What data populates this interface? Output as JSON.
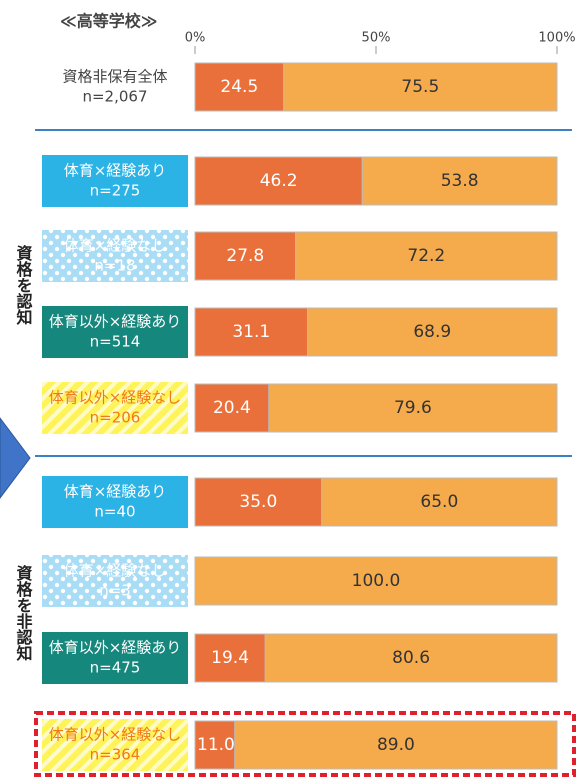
{
  "chart_data": {
    "type": "stacked-bar-horizontal",
    "title": "≪高等学校≫",
    "categories": [
      "資格非保有全体",
      "体育×経験あり",
      "体育×経験なし",
      "体育以外×経験あり",
      "体育以外×経験なし",
      "体育×経験あり",
      "体育×経験なし",
      "体育以外×経験あり",
      "体育以外×経験なし"
    ],
    "sample_sizes": [
      "n=2,067",
      "n=275",
      "n=18",
      "n=514",
      "n=206",
      "n=40",
      "n=3",
      "n=475",
      "n=364"
    ],
    "group_labels": [
      "資格を認知",
      "資格を非認知"
    ],
    "series": [
      {
        "color": "#e9703a",
        "values": [
          24.5,
          46.2,
          27.8,
          31.1,
          20.4,
          35.0,
          null,
          19.4,
          11.0
        ],
        "value_labels": [
          "24.5",
          "46.2",
          "27.8",
          "31.1",
          "20.4",
          "35.0",
          null,
          "19.4",
          "11.0"
        ]
      },
      {
        "color": "#f5ab4c",
        "values": [
          75.5,
          53.8,
          72.2,
          68.9,
          79.6,
          65.0,
          100.0,
          80.6,
          89.0
        ],
        "value_labels": [
          "75.5",
          "53.8",
          "72.2",
          "68.9",
          "79.6",
          "65.0",
          "100.0",
          "80.6",
          "89.0"
        ]
      }
    ],
    "xlim": [
      0,
      100
    ],
    "xticks": [
      {
        "value": 0,
        "label": "0%"
      },
      {
        "value": 50,
        "label": "50%"
      },
      {
        "value": 100,
        "label": "100%"
      }
    ]
  }
}
